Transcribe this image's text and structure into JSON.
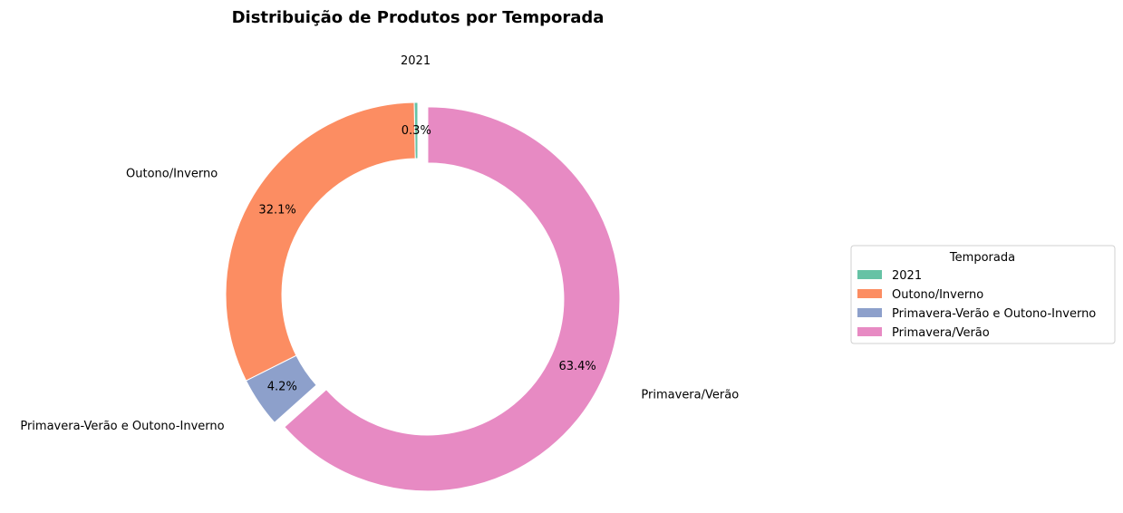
{
  "chart_data": {
    "type": "pie",
    "title": "Distribuição de Produtos por Temporada",
    "categories": [
      "2021",
      "Outono/Inverno",
      "Primavera-Verão e Outono-Inverno",
      "Primavera/Verão"
    ],
    "values": [
      0.3,
      32.1,
      4.2,
      63.4
    ],
    "value_labels": [
      "0.3%",
      "32.1%",
      "4.2%",
      "63.4%"
    ],
    "colors": [
      "#66c2a5",
      "#fc8d62",
      "#8da0cb",
      "#e78ac3"
    ],
    "donut": true,
    "exploded": [
      "Primavera/Verão"
    ],
    "start_angle_deg": 90,
    "direction": "counterclockwise",
    "legend": {
      "title": "Temporada",
      "placement": "right",
      "entries": [
        "2021",
        "Outono/Inverno",
        "Primavera-Verão e Outono-Inverno",
        "Primavera/Verão"
      ]
    }
  }
}
